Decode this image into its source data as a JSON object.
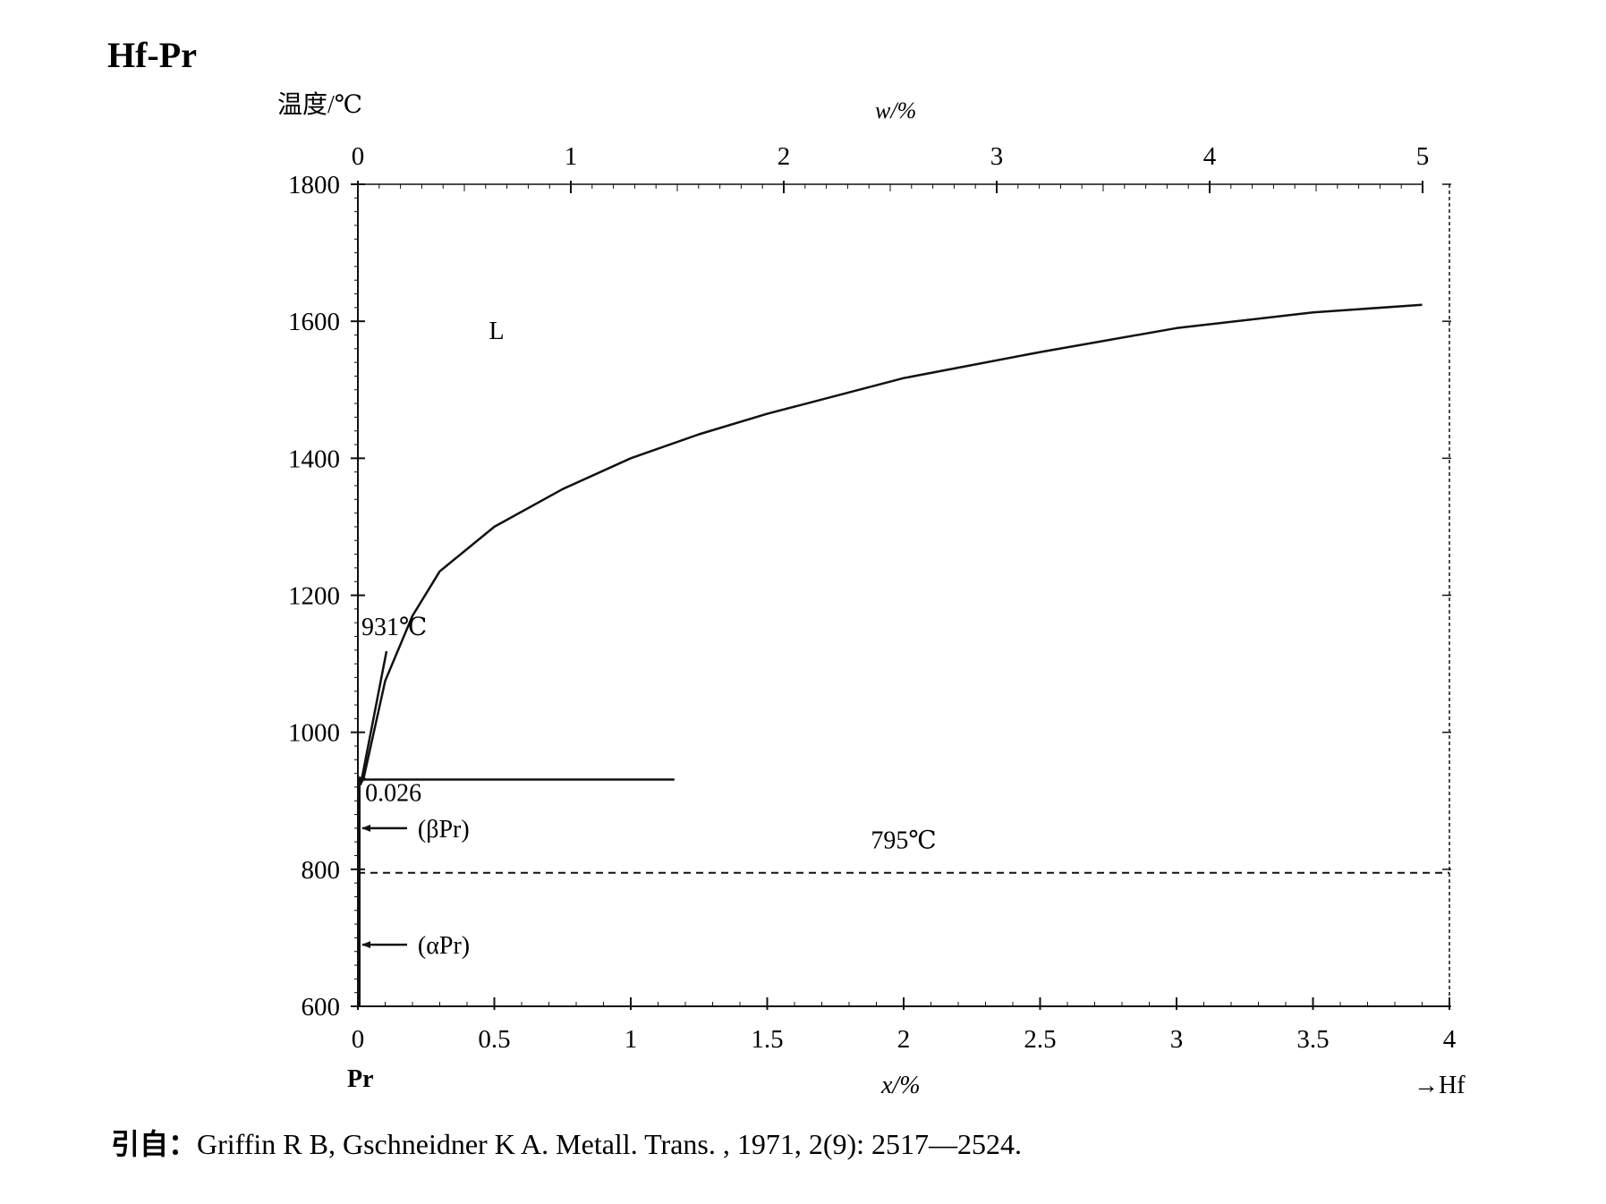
{
  "figure_title": "Hf-Pr",
  "citation": {
    "prefix": "引自：",
    "text": "Griffin R B, Gschneidner K A. Metall. Trans. , 1971, 2(9): 2517—2524."
  },
  "chart_data": {
    "type": "line",
    "title": "Hf-Pr",
    "ylabel": "温度/℃",
    "xlabel": "x/%",
    "x2label": "w/%",
    "ylim": [
      600,
      1800
    ],
    "xlim": [
      0,
      4
    ],
    "x2lim": [
      0,
      5
    ],
    "yticks": [
      600,
      800,
      1000,
      1200,
      1400,
      1600,
      1800
    ],
    "xticks": [
      "0",
      "0.5",
      "1",
      "1.5",
      "2",
      "2.5",
      "3",
      "3.5",
      "4"
    ],
    "x2ticks": [
      "0",
      "1",
      "2",
      "3",
      "4",
      "5"
    ],
    "left_element": "Pr",
    "right_element": "→Hf",
    "grid": false,
    "series": [
      {
        "style": "solid",
        "points": [
          [
            0.02,
            931
          ],
          [
            0.1,
            1075
          ],
          [
            0.2,
            1170
          ],
          [
            0.3,
            1235
          ],
          [
            0.5,
            1300
          ],
          [
            0.75,
            1355
          ],
          [
            1.0,
            1400
          ],
          [
            1.25,
            1435
          ],
          [
            1.5,
            1465
          ],
          [
            2.0,
            1517
          ],
          [
            2.5,
            1555
          ],
          [
            3.0,
            1590
          ],
          [
            3.5,
            1613
          ],
          [
            3.9,
            1624
          ]
        ]
      },
      {
        "style": "solid",
        "points": [
          [
            0.0,
            931
          ],
          [
            1.16,
            931
          ]
        ]
      },
      {
        "style": "dashed",
        "points": [
          [
            0.0,
            795
          ],
          [
            4.0,
            795
          ]
        ]
      },
      {
        "style": "solid",
        "points": [
          [
            0.005,
            600
          ],
          [
            0.005,
            931
          ]
        ]
      }
    ],
    "annotations": [
      {
        "text": "L",
        "x": 0.5,
        "y": 1590
      },
      {
        "text": "931℃",
        "x": 0.0,
        "y": 1142
      },
      {
        "text": "0.026",
        "x": 0.02,
        "y": 900
      },
      {
        "text": "(βPr)",
        "x": 0.18,
        "y": 860
      },
      {
        "text": "795℃",
        "x": 2.0,
        "y": 820
      },
      {
        "text": "(αPr)",
        "x": 0.18,
        "y": 690
      }
    ]
  }
}
